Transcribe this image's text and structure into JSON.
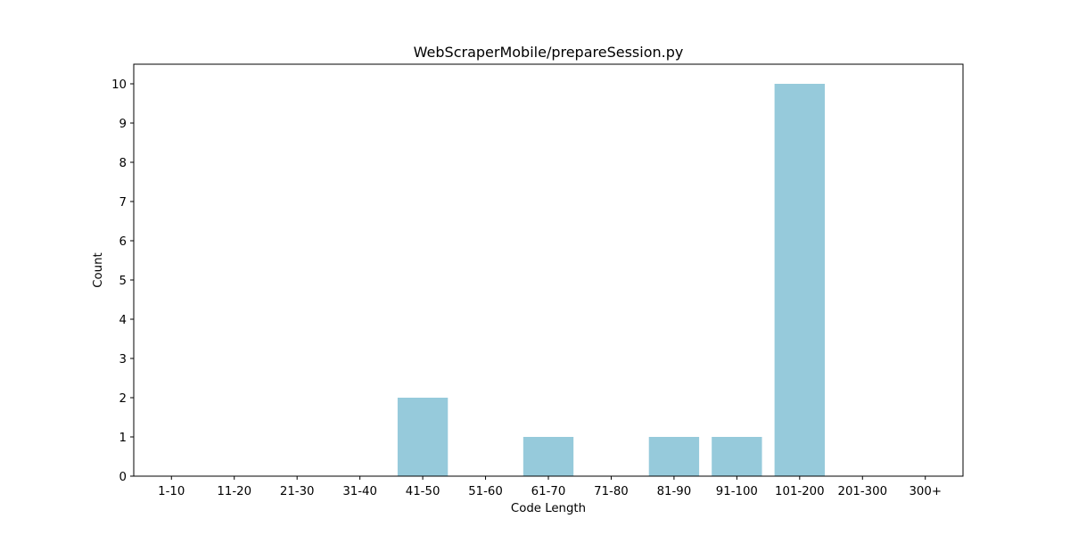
{
  "chart_data": {
    "type": "bar",
    "title": "WebScraperMobile/prepareSession.py",
    "xlabel": "Code Length",
    "ylabel": "Count",
    "categories": [
      "1-10",
      "11-20",
      "21-30",
      "31-40",
      "41-50",
      "51-60",
      "61-70",
      "71-80",
      "81-90",
      "91-100",
      "101-200",
      "201-300",
      "300+"
    ],
    "values": [
      0,
      0,
      0,
      0,
      2,
      0,
      1,
      0,
      1,
      1,
      10,
      0,
      0
    ],
    "ylim": [
      0,
      10.5
    ],
    "yticks": [
      0,
      1,
      2,
      3,
      4,
      5,
      6,
      7,
      8,
      9,
      10
    ],
    "grid": false,
    "legend": "none",
    "bar_color": "#96cadb"
  }
}
